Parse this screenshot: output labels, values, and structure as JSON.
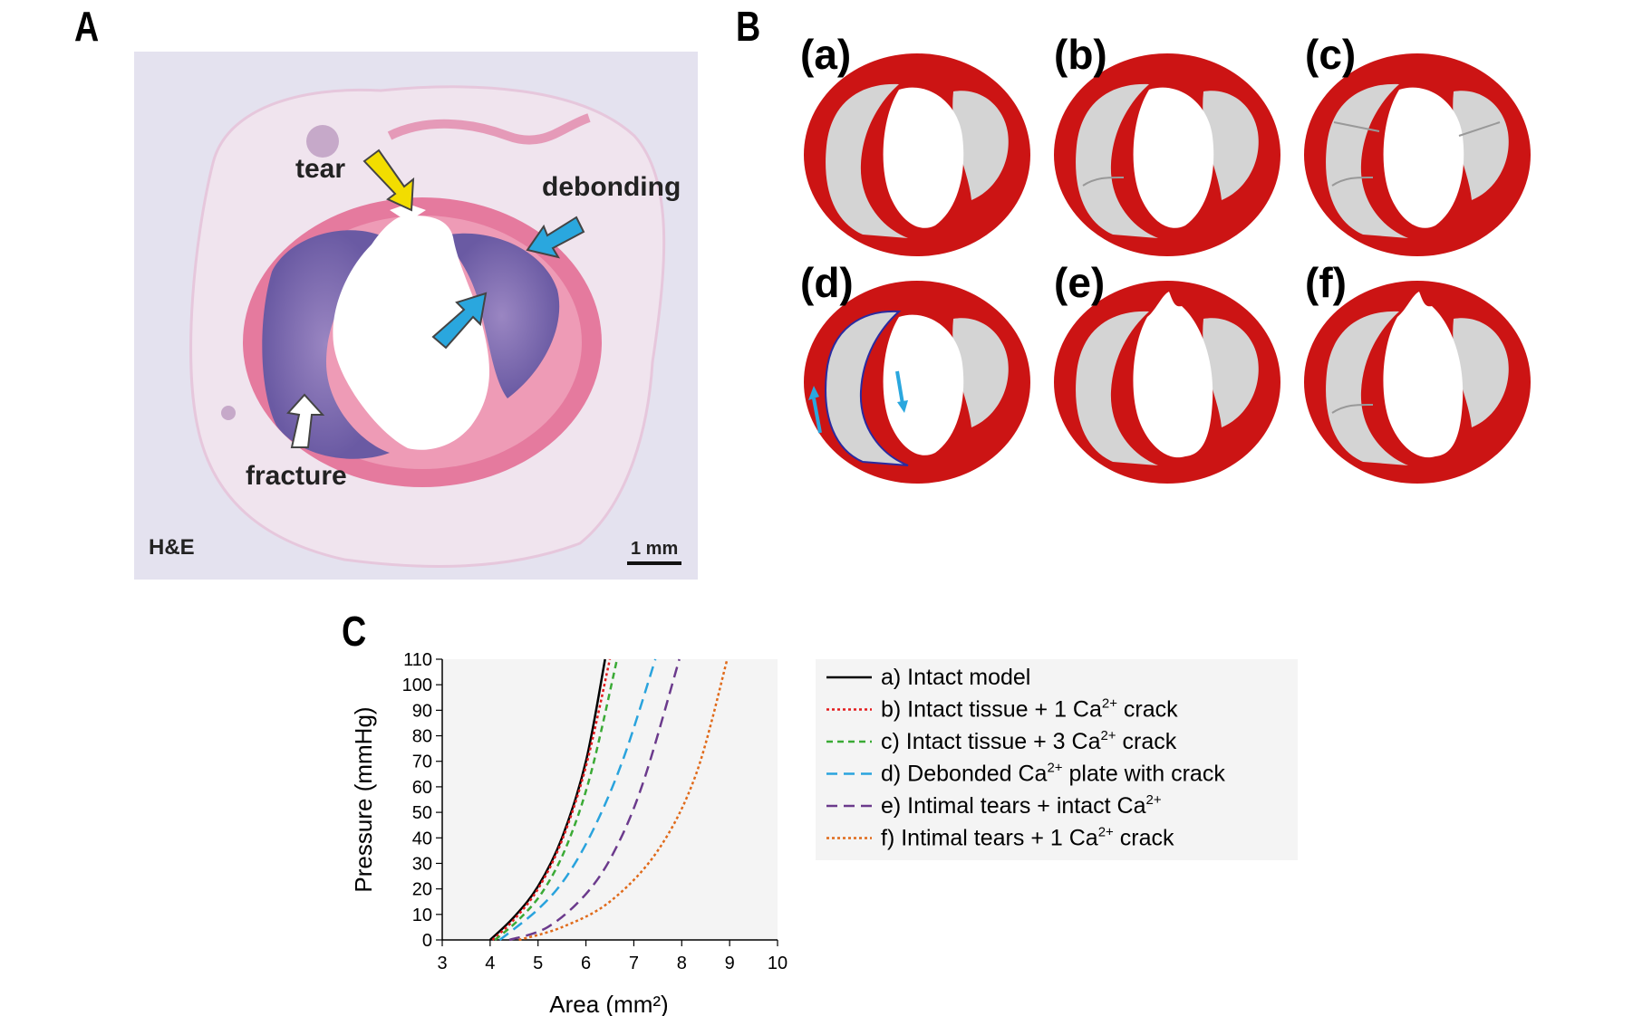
{
  "panels": {
    "a": {
      "letter": "A",
      "labels": {
        "tear": "tear",
        "debonding": "debonding",
        "fracture": "fracture",
        "stain": "H&E",
        "scale": "1 mm"
      }
    },
    "b": {
      "letter": "B",
      "sublabels": [
        "(a)",
        "(b)",
        "(c)",
        "(d)",
        "(e)",
        "(f)"
      ]
    },
    "c": {
      "letter": "C"
    }
  },
  "colors": {
    "vessel_wall": "#cc1414",
    "calcification": "#d4d4d4",
    "arrow_blue": "#2aa7de",
    "arrow_yellow": "#f2dd00",
    "histology_bg": "#e4e2ef",
    "plot_bg": "#f4f4f4"
  },
  "chart_data": {
    "type": "line",
    "xlabel": "Area (mm²)",
    "ylabel": "Pressure (mmHg)",
    "xlim": [
      3,
      10
    ],
    "ylim": [
      0,
      110
    ],
    "xticks": [
      3,
      4,
      5,
      6,
      7,
      8,
      9,
      10
    ],
    "yticks": [
      0,
      10,
      20,
      30,
      40,
      50,
      60,
      70,
      80,
      90,
      100,
      110
    ],
    "legend_position": "right",
    "series": [
      {
        "name": "a) Intact model",
        "label_main": "a) Intact model",
        "label_tail": "",
        "color": "#000000",
        "dash": "solid",
        "x": [
          4.0,
          4.5,
          5.0,
          5.5,
          6.0,
          6.4
        ],
        "y": [
          0,
          9,
          21,
          40,
          70,
          110
        ]
      },
      {
        "name": "b) Intact tissue + 1 Ca2+ crack",
        "label_main": "b) Intact tissue + 1 Ca",
        "label_tail": " crack",
        "color": "#e31a1c",
        "dash": "dotted",
        "x": [
          4.05,
          4.5,
          5.0,
          5.5,
          6.0,
          6.5
        ],
        "y": [
          0,
          8,
          20,
          39,
          68,
          110
        ]
      },
      {
        "name": "c) Intact tissue + 3 Ca2+ crack",
        "label_main": "c) Intact tissue + 3 Ca",
        "label_tail": " crack",
        "color": "#3aaa35",
        "dash": "short-dash",
        "x": [
          4.1,
          4.6,
          5.1,
          5.6,
          6.1,
          6.65
        ],
        "y": [
          0,
          8,
          19,
          37,
          65,
          110
        ]
      },
      {
        "name": "d) Debonded Ca2+ plate with crack",
        "label_main": "d) Debonded Ca",
        "label_tail": " plate with crack",
        "color": "#29a3dd",
        "dash": "long-dash",
        "x": [
          4.2,
          5.0,
          5.6,
          6.2,
          6.8,
          7.45
        ],
        "y": [
          0,
          12,
          25,
          45,
          72,
          110
        ]
      },
      {
        "name": "e) Intimal tears + intact Ca2+",
        "label_main": "e) Intimal tears + intact Ca",
        "label_tail": "",
        "color": "#6b3a8c",
        "dash": "long-dash",
        "x": [
          4.4,
          5.2,
          6.0,
          6.6,
          7.2,
          7.95
        ],
        "y": [
          0,
          5,
          18,
          35,
          62,
          110
        ]
      },
      {
        "name": "f) Intimal tears + 1 Ca2+ crack",
        "label_main": "f) Intimal tears + 1 Ca",
        "label_tail": " crack",
        "color": "#e06a1a",
        "dash": "dotted",
        "x": [
          4.6,
          5.5,
          6.5,
          7.5,
          8.3,
          8.95
        ],
        "y": [
          0,
          5,
          15,
          35,
          65,
          110
        ]
      }
    ]
  }
}
